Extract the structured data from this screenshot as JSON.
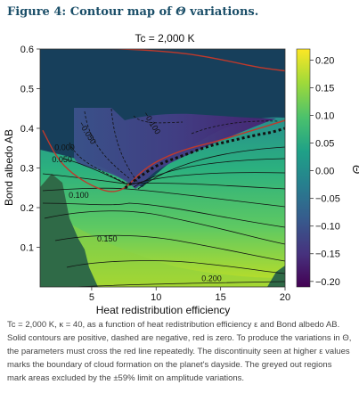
{
  "figure": {
    "title_prefix": "Figure 4: Contour map of ",
    "title_symbol": "Θ",
    "title_suffix": " variations."
  },
  "caption": {
    "text": "Tc = 2,000 K, κ = 40, as a function of heat redistribution efficiency ε and Bond albedo AB. Solid contours are positive, dashed are negative, red is zero. To produce the variations in Θ, the parameters must cross the red line repeatedly. The discontinuity seen at higher ε values marks the boundary of cloud formation on the planet's dayside. The greyed out regions mark areas excluded by the ±59% limit on amplitude variations."
  },
  "colors": {
    "accent_title": "#1a4e68",
    "zero_contour": "#c0392b",
    "excluded_region": "#2f6a47",
    "colormap": [
      "#440154",
      "#46327e",
      "#365c8d",
      "#277f8e",
      "#1fa187",
      "#4ac16d",
      "#a0da39",
      "#fde725"
    ]
  },
  "chart_data": {
    "type": "heatmap",
    "title": "Tc = 2,000 K",
    "xlabel": "Heat redistribution efficiency",
    "ylabel": "Bond albedo AB",
    "xlim": [
      1,
      20
    ],
    "ylim": [
      0,
      0.6
    ],
    "xticks": [
      5,
      10,
      15,
      20
    ],
    "yticks": [
      0.1,
      0.2,
      0.3,
      0.4,
      0.5,
      0.6
    ],
    "colorbar": {
      "label": "Θ",
      "range": [
        -0.21,
        0.22
      ],
      "ticks": [
        0.2,
        0.15,
        0.1,
        0.05,
        0.0,
        -0.05,
        -0.1,
        -0.15,
        -0.2
      ],
      "tick_labels": [
        "0.20",
        "0.15",
        "0.10",
        "0.05",
        "0.00",
        "−0.05",
        "−0.10",
        "−0.15",
        "−0.20"
      ]
    },
    "contour_labels": [
      {
        "text": "0.200",
        "x": 14.3,
        "y": 0.015
      },
      {
        "text": "0.150",
        "x": 6.2,
        "y": 0.115
      },
      {
        "text": "0.100",
        "x": 4.0,
        "y": 0.225
      },
      {
        "text": "0.050",
        "x": 2.7,
        "y": 0.315
      },
      {
        "text": "0.000",
        "x": 2.9,
        "y": 0.345
      },
      {
        "text": "−0.050",
        "x": 4.5,
        "y": 0.385
      },
      {
        "text": "−0.100",
        "x": 9.5,
        "y": 0.41
      }
    ],
    "zero_contour": [
      [
        1.2,
        0.395
      ],
      [
        2.3,
        0.325
      ],
      [
        3.5,
        0.285
      ],
      [
        5.0,
        0.255
      ],
      [
        6.4,
        0.238
      ],
      [
        7.4,
        0.245
      ],
      [
        8.1,
        0.265
      ],
      [
        9.0,
        0.295
      ],
      [
        10.5,
        0.325
      ],
      [
        12.5,
        0.35
      ],
      [
        14.5,
        0.365
      ],
      [
        16.5,
        0.385
      ],
      [
        18.5,
        0.405
      ],
      [
        20,
        0.42
      ]
    ],
    "zero_contour_top": [
      [
        1,
        0.605
      ],
      [
        5,
        0.603
      ],
      [
        9,
        0.598
      ],
      [
        12,
        0.59
      ],
      [
        14,
        0.58
      ],
      [
        16,
        0.567
      ],
      [
        18,
        0.553
      ],
      [
        20,
        0.545
      ]
    ],
    "cloud_boundary": [
      [
        7.6,
        0.25
      ],
      [
        8.8,
        0.28
      ],
      [
        10.2,
        0.31
      ],
      [
        12,
        0.33
      ],
      [
        14,
        0.355
      ],
      [
        16,
        0.37
      ],
      [
        18,
        0.385
      ],
      [
        19,
        0.39
      ],
      [
        20,
        0.4
      ]
    ]
  }
}
